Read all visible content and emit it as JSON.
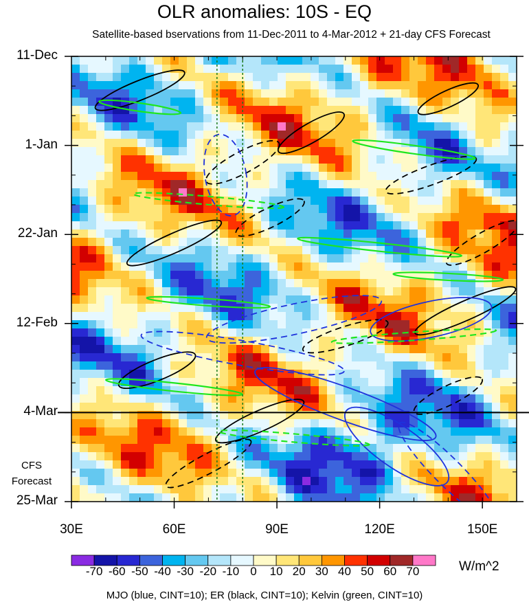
{
  "title": "OLR anomalies: 10S - EQ",
  "subtitle": "Satellite-based bservations from 11-Dec-2011 to 4-Mar-2012 + 21-day CFS Forecast",
  "forecast_label_line1": "CFS",
  "forecast_label_line2": "Forecast",
  "unit_label": "W/m^2",
  "footnote": "MJO (blue, CINT=10); ER (black, CINT=10); Kelvin (green, CINT=10)",
  "chart_data": {
    "type": "heatmap",
    "title": "OLR anomalies: 10S - EQ",
    "x_axis": {
      "range": [
        30,
        160
      ],
      "ticks": [
        30,
        60,
        90,
        120,
        150
      ],
      "tick_labels": [
        "30E",
        "60E",
        "90E",
        "120E",
        "150E"
      ]
    },
    "y_axis": {
      "range_days": [
        0,
        105
      ],
      "ticks": [
        0,
        21,
        42,
        63,
        84,
        105
      ],
      "tick_labels": [
        "11-Dec",
        "1-Jan",
        "22-Jan",
        "12-Feb",
        "4-Mar",
        "25-Mar"
      ]
    },
    "forecast_start": "4-Mar",
    "reference_lines_lon": [
      72.5,
      80
    ],
    "colorbar": {
      "labels": [
        "-70",
        "-60",
        "-50",
        "-40",
        "-30",
        "-20",
        "-10",
        "0",
        "10",
        "20",
        "30",
        "40",
        "50",
        "60",
        "70"
      ],
      "colors": [
        "#8a2be2",
        "#1414a8",
        "#2828d2",
        "#3c64dc",
        "#00b4f0",
        "#64c8f0",
        "#b4e6fa",
        "#e6f8ff",
        "#fffac8",
        "#ffe678",
        "#ffc83c",
        "#ff9600",
        "#ff3200",
        "#d20000",
        "#a02828",
        "#ff78c8"
      ]
    },
    "overlays": [
      {
        "field": "MJO",
        "color": "blue",
        "cint": 10
      },
      {
        "field": "ER",
        "color": "black",
        "cint": 10
      },
      {
        "field": "Kelvin",
        "color": "green",
        "cint": 10
      }
    ]
  }
}
